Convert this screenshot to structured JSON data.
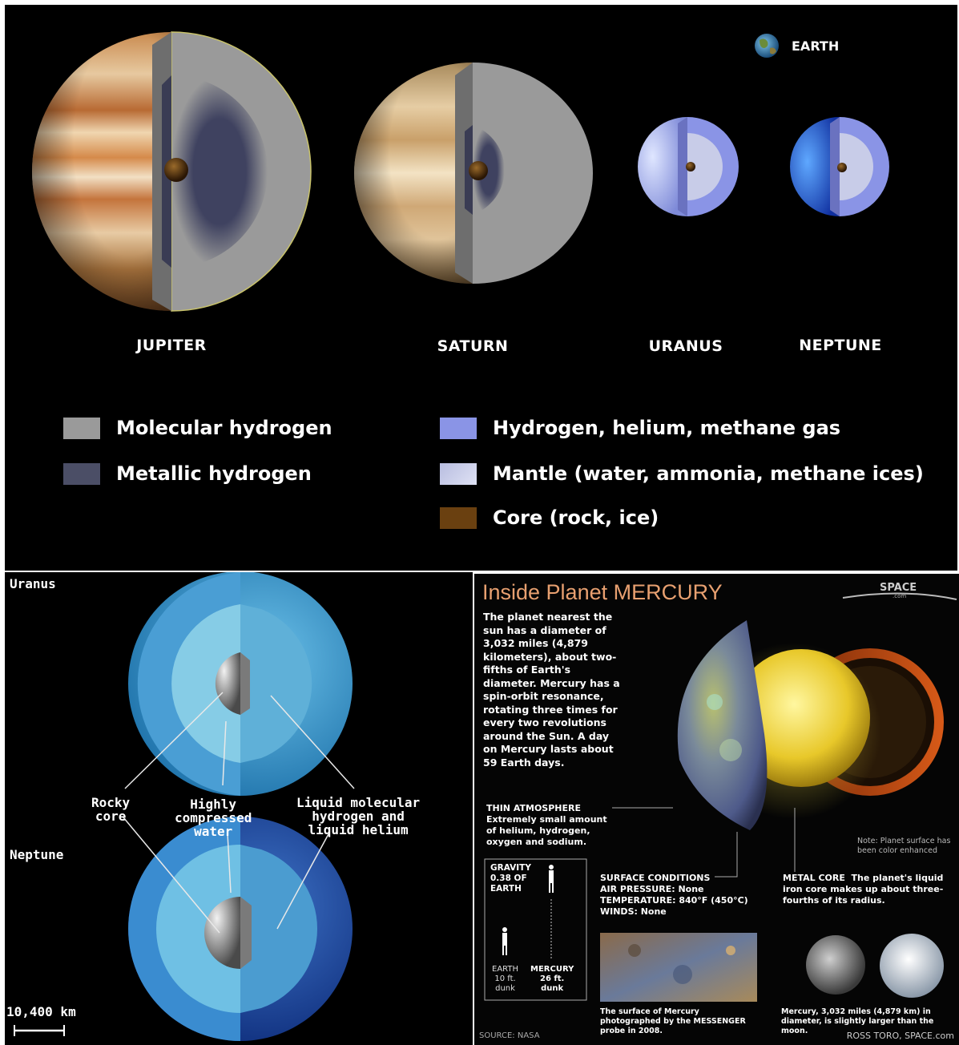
{
  "top": {
    "earth_label": "EARTH",
    "planets": [
      {
        "name": "JUPITER"
      },
      {
        "name": "SATURN"
      },
      {
        "name": "URANUS"
      },
      {
        "name": "NEPTUNE"
      }
    ],
    "legend": [
      {
        "label": "Molecular hydrogen",
        "color": "#9a9a9a"
      },
      {
        "label": "Metallic hydrogen",
        "color": "#4b4e66"
      },
      {
        "label": "Hydrogen, helium, methane gas",
        "color": "#8a94e6"
      },
      {
        "label": "Mantle (water, ammonia, methane ices)",
        "color": "#c8cce8"
      },
      {
        "label": "Core (rock, ice)",
        "color": "#6a4010"
      }
    ]
  },
  "bottom_left": {
    "uranus_label": "Uranus",
    "neptune_label": "Neptune",
    "callouts": {
      "rocky_core": "Rocky\ncore",
      "water": "Highly\ncompressed\nwater",
      "liquid": "Liquid molecular\nhydrogen and\nliquid helium"
    },
    "scale_label": "10,400 km"
  },
  "bottom_right": {
    "title_prefix": "Inside Planet ",
    "title_strong": "MERCURY",
    "brand": "SPACE",
    "brand_sub": ".com",
    "intro": "The planet nearest the sun has a diameter of 3,032 miles (4,879 kilometers), about two-fifths of Earth's diameter. Mercury has a spin-orbit resonance, rotating three times for every two revolutions around the Sun. A day on Mercury lasts about 59 Earth days.",
    "atmosphere_title": "THIN ATMOSPHERE",
    "atmosphere_text": "Extremely small amount of helium, hydrogen, oxygen and sodium.",
    "note": "Note: Planet surface has been color enhanced",
    "gravity_title": "GRAVITY\n0.38 OF\nEARTH",
    "earth_dunk": "EARTH\n10 ft.\ndunk",
    "mercury_dunk": "MERCURY\n26 ft.\ndunk",
    "surface_title": "SURFACE CONDITIONS",
    "surface_lines": "AIR PRESSURE: None\nTEMPERATURE: 840°F (450°C)\nWINDS: None",
    "core_title": "METAL CORE",
    "core_text": "The planet's liquid iron core makes up about three-fourths of its radius.",
    "photo_caption": "The surface of Mercury photographed by the MESSENGER probe in 2008.",
    "compare_caption": "Mercury, 3,032 miles (4,879 km) in diameter, is slightly larger than the moon.",
    "source": "SOURCE: NASA",
    "credit": "ROSS TORO, SPACE.com"
  }
}
